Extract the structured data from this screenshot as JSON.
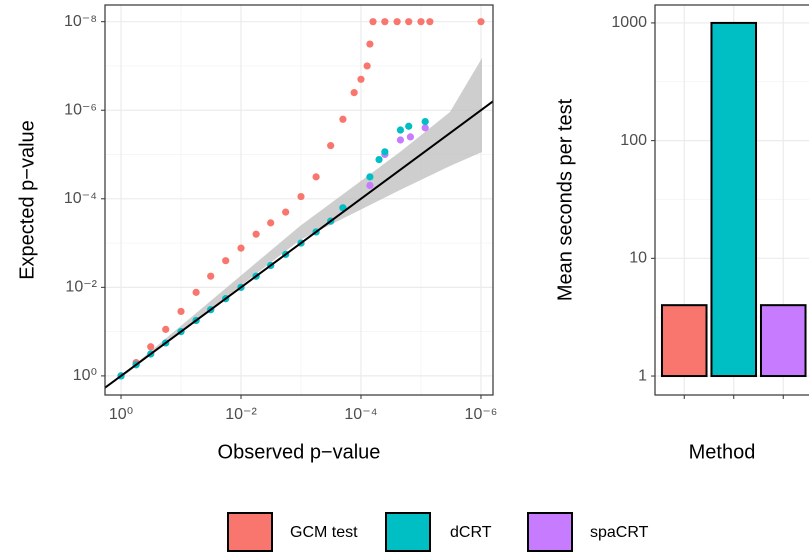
{
  "chart_data": [
    {
      "type": "scatter",
      "xlabel": "Observed p−value",
      "ylabel": "Expected p−value",
      "log_x": true,
      "log_y": true,
      "grid": true,
      "xlim": [
        1.85,
        6.3e-07
      ],
      "ylim": [
        2.7,
        4.2e-09
      ],
      "xticks": [
        {
          "value": 1,
          "label": "10⁰"
        },
        {
          "value": 0.01,
          "label": "10⁻²"
        },
        {
          "value": 0.0001,
          "label": "10⁻⁴"
        },
        {
          "value": 1e-06,
          "label": "10⁻⁶"
        }
      ],
      "yticks": [
        {
          "value": 1,
          "label": "10⁰"
        },
        {
          "value": 0.01,
          "label": "10⁻²"
        },
        {
          "value": 0.0001,
          "label": "10⁻⁴"
        },
        {
          "value": 1e-06,
          "label": "10⁻⁶"
        },
        {
          "value": 1e-08,
          "label": "10⁻⁸"
        }
      ],
      "series": [
        {
          "name": "GCM test",
          "color": "#F8766D",
          "x": [
            1,
            0.56,
            0.32,
            0.18,
            0.1,
            0.056,
            0.032,
            0.018,
            0.01,
            0.0056,
            0.0032,
            0.0018,
            0.001,
            0.00056,
            0.00032,
            0.0002,
            0.00013,
            0.0001,
            7.9e-05,
            7.1e-05,
            6.3e-05,
            4e-05,
            2.5e-05,
            1.6e-05,
            1e-05,
            7.1e-06,
            1e-06
          ],
          "values": [
            1,
            0.5,
            0.22,
            0.089,
            0.035,
            0.013,
            0.0056,
            0.0025,
            0.0013,
            0.00063,
            0.00035,
            0.0002,
            8.9e-05,
            3.2e-05,
            6.3e-06,
            1.6e-06,
            4e-07,
            2e-07,
            1e-07,
            3.2e-08,
            1e-08,
            1e-08,
            1e-08,
            1e-08,
            1e-08,
            1e-08,
            1e-08
          ]
        },
        {
          "name": "dCRT",
          "color": "#00BFC4",
          "x": [
            1,
            0.56,
            0.32,
            0.18,
            0.1,
            0.056,
            0.032,
            0.018,
            0.01,
            0.0056,
            0.0032,
            0.0018,
            0.001,
            0.00056,
            0.00032,
            0.0002,
            7.1e-05,
            5e-05,
            4e-05,
            2.2e-05,
            1.6e-05,
            8.5e-06
          ],
          "values": [
            1,
            0.56,
            0.32,
            0.18,
            0.1,
            0.056,
            0.032,
            0.018,
            0.01,
            0.0056,
            0.0032,
            0.0018,
            0.001,
            0.00056,
            0.00032,
            0.00016,
            3.2e-05,
            1.3e-05,
            8.7e-06,
            2.8e-06,
            2.3e-06,
            1.8e-06
          ]
        },
        {
          "name": "spaCRT",
          "color": "#C77CFF",
          "x": [
            1,
            0.56,
            0.32,
            0.18,
            0.1,
            0.056,
            0.032,
            0.018,
            0.01,
            0.0056,
            0.0032,
            0.0018,
            0.001,
            0.00056,
            0.00032,
            0.0002,
            7.1e-05,
            4e-05,
            2.2e-05,
            1.5e-05,
            8.5e-06
          ],
          "values": [
            1,
            0.56,
            0.32,
            0.18,
            0.1,
            0.056,
            0.032,
            0.018,
            0.01,
            0.0056,
            0.0032,
            0.0018,
            0.001,
            0.00056,
            0.00032,
            0.00016,
            5e-05,
            1e-05,
            4.7e-06,
            4e-06,
            2.5e-06
          ]
        }
      ]
    },
    {
      "type": "bar",
      "xlabel": "Method",
      "ylabel": "Mean seconds per test",
      "log_y": true,
      "grid": true,
      "categories": [
        null,
        null,
        null
      ],
      "values": [
        4,
        1000,
        4
      ],
      "ylim": [
        0.69,
        1420
      ],
      "yticks": [
        1,
        10,
        100,
        1000
      ]
    }
  ]
}
